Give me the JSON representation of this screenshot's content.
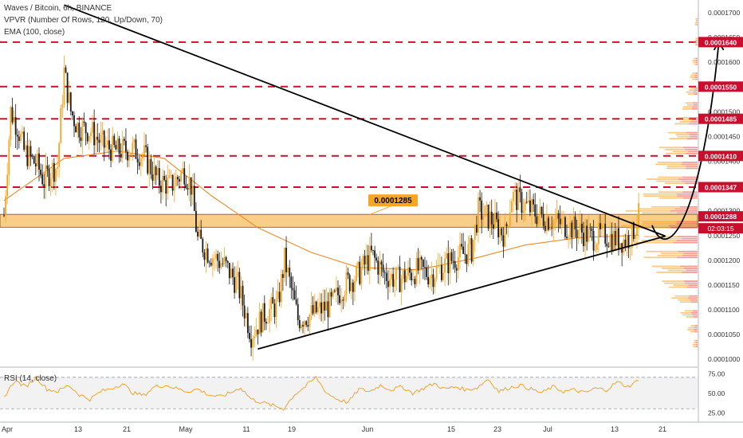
{
  "header": {
    "symbol_line": "Waves / Bitcoin, 6h, BINANCE",
    "vpvr_line": "VPVR (Number Of Rows, 120, Up/Down, 70)",
    "ema_line": "EMA (100, close)",
    "rsi_line": "RSI (14, close)"
  },
  "chart_data": {
    "type": "candlestick",
    "symbol": "Waves / Bitcoin",
    "timeframe": "6h",
    "exchange": "BINANCE",
    "price_axis": {
      "ylim": [
        9.85e-05,
        0.0001725
      ],
      "ticks": [
        "0.0001000",
        "0.0001050",
        "0.0001100",
        "0.0001150",
        "0.0001200",
        "0.0001250",
        "0.0001300",
        "0.0001350",
        "0.0001400",
        "0.0001450",
        "0.0001500",
        "0.0001550",
        "0.0001600",
        "0.0001650",
        "0.0001700"
      ]
    },
    "time_axis": {
      "ticks": [
        "Apr",
        "13",
        "21",
        "May",
        "11",
        "19",
        "Jun",
        "15",
        "23",
        "Jul",
        "13",
        "21"
      ]
    },
    "horizontal_levels": [
      {
        "price": 0.000164,
        "label": "0.0001640"
      },
      {
        "price": 0.000155,
        "label": "0.0001550"
      },
      {
        "price": 0.0001485,
        "label": "0.0001485"
      },
      {
        "price": 0.000141,
        "label": "0.0001410"
      },
      {
        "price": 0.0001347,
        "label": "0.0001347"
      }
    ],
    "support_zone": {
      "low": 0.0001266,
      "high": 0.0001292,
      "label": "0.0001285"
    },
    "last_price": {
      "price": 0.0001288,
      "label": "0.0001288",
      "countdown": "02:03:15"
    },
    "close_path": [
      {
        "date": "Mar 31",
        "close": 0.000129
      },
      {
        "date": "Apr 1",
        "close": 0.00015
      },
      {
        "date": "Apr 2",
        "close": 0.000147
      },
      {
        "date": "Apr 3",
        "close": 0.000142
      },
      {
        "date": "Apr 5",
        "close": 0.000139
      },
      {
        "date": "Apr 6",
        "close": 0.000136
      },
      {
        "date": "Apr 7",
        "close": 0.000138
      },
      {
        "date": "Apr 8",
        "close": 0.000139
      },
      {
        "date": "Apr 9",
        "close": 0.000158
      },
      {
        "date": "Apr 10",
        "close": 0.00015
      },
      {
        "date": "Apr 11",
        "close": 0.000147
      },
      {
        "date": "Apr 13",
        "close": 0.000146
      },
      {
        "date": "Apr 15",
        "close": 0.000143
      },
      {
        "date": "Apr 17",
        "close": 0.000142
      },
      {
        "date": "Apr 19",
        "close": 0.0001425
      },
      {
        "date": "Apr 21",
        "close": 0.000141
      },
      {
        "date": "Apr 23",
        "close": 0.000136
      },
      {
        "date": "Apr 25",
        "close": 0.000135
      },
      {
        "date": "Apr 27",
        "close": 0.000138
      },
      {
        "date": "Apr 28",
        "close": 0.000135
      },
      {
        "date": "Apr 29",
        "close": 0.000124
      },
      {
        "date": "May 1",
        "close": 0.000121
      },
      {
        "date": "May 3",
        "close": 0.000119
      },
      {
        "date": "May 5",
        "close": 0.000115
      },
      {
        "date": "May 7",
        "close": 0.000105
      },
      {
        "date": "May 9",
        "close": 0.000109
      },
      {
        "date": "May 11",
        "close": 0.000111
      },
      {
        "date": "May 12",
        "close": 0.00012
      },
      {
        "date": "May 14",
        "close": 0.000108
      },
      {
        "date": "May 16",
        "close": 0.000109
      },
      {
        "date": "May 19",
        "close": 0.000111
      },
      {
        "date": "May 21",
        "close": 0.000115
      },
      {
        "date": "May 23",
        "close": 0.000117
      },
      {
        "date": "May 25",
        "close": 0.000121
      },
      {
        "date": "May 27",
        "close": 0.000117
      },
      {
        "date": "May 29",
        "close": 0.000116
      },
      {
        "date": "Jun 1",
        "close": 0.000118
      },
      {
        "date": "Jun 3",
        "close": 0.000117
      },
      {
        "date": "Jun 6",
        "close": 0.00012
      },
      {
        "date": "Jun 9",
        "close": 0.000122
      },
      {
        "date": "Jun 10",
        "close": 0.00013
      },
      {
        "date": "Jun 12",
        "close": 0.000128
      },
      {
        "date": "Jun 14",
        "close": 0.000125
      },
      {
        "date": "Jun 15",
        "close": 0.000133
      },
      {
        "date": "Jun 17",
        "close": 0.000131
      },
      {
        "date": "Jun 19",
        "close": 0.000129
      },
      {
        "date": "Jun 21",
        "close": 0.000128
      },
      {
        "date": "Jun 23",
        "close": 0.000127
      },
      {
        "date": "Jun 25",
        "close": 0.000126
      },
      {
        "date": "Jun 27",
        "close": 0.0001245
      },
      {
        "date": "Jun 29",
        "close": 0.000125
      },
      {
        "date": "Jul 1",
        "close": 0.000124
      },
      {
        "date": "Jul 2",
        "close": 0.000124
      },
      {
        "date": "Jul 3",
        "close": 0.000125
      },
      {
        "date": "Jul 4",
        "close": 0.0001288
      }
    ],
    "ema_100": [
      {
        "date": "Mar 31",
        "value": 0.000132
      },
      {
        "date": "Apr 9",
        "value": 0.0001405
      },
      {
        "date": "Apr 17",
        "value": 0.000142
      },
      {
        "date": "Apr 24",
        "value": 0.0001405
      },
      {
        "date": "May 1",
        "value": 0.000133
      },
      {
        "date": "May 8",
        "value": 0.0001265
      },
      {
        "date": "May 16",
        "value": 0.0001215
      },
      {
        "date": "May 23",
        "value": 0.0001185
      },
      {
        "date": "Jun 1",
        "value": 0.000118
      },
      {
        "date": "Jun 10",
        "value": 0.0001205
      },
      {
        "date": "Jun 17",
        "value": 0.000123
      },
      {
        "date": "Jun 25",
        "value": 0.0001245
      },
      {
        "date": "Jul 4",
        "value": 0.000125
      }
    ],
    "trendlines": [
      {
        "name": "descending",
        "from": {
          "date": "Apr 9",
          "price": 0.0001715
        },
        "to": {
          "date": "Jul 8",
          "price": 0.0001248
        }
      },
      {
        "name": "ascending",
        "from": {
          "date": "May 8",
          "price": 0.000102
        },
        "to": {
          "date": "Jul 8",
          "price": 0.0001248
        }
      }
    ],
    "projection": {
      "from": {
        "date": "Jul 6",
        "price": 0.000127
      },
      "to": {
        "date": "Jul 16",
        "price": 0.000164
      }
    },
    "volume_profile": [
      {
        "price": 0.000103,
        "size": 0.06
      },
      {
        "price": 0.000106,
        "size": 0.12
      },
      {
        "price": 0.000109,
        "size": 0.2
      },
      {
        "price": 0.000112,
        "size": 0.3
      },
      {
        "price": 0.000115,
        "size": 0.42
      },
      {
        "price": 0.000118,
        "size": 0.52
      },
      {
        "price": 0.000121,
        "size": 0.62
      },
      {
        "price": 0.000124,
        "size": 0.74
      },
      {
        "price": 0.000127,
        "size": 0.9
      },
      {
        "price": 0.00013,
        "size": 0.82
      },
      {
        "price": 0.000133,
        "size": 0.66
      },
      {
        "price": 0.000136,
        "size": 0.58
      },
      {
        "price": 0.000139,
        "size": 0.5
      },
      {
        "price": 0.000142,
        "size": 0.44
      },
      {
        "price": 0.000145,
        "size": 0.34
      },
      {
        "price": 0.000148,
        "size": 0.26
      },
      {
        "price": 0.000151,
        "size": 0.18
      },
      {
        "price": 0.000154,
        "size": 0.13
      },
      {
        "price": 0.000157,
        "size": 0.09
      },
      {
        "price": 0.00016,
        "size": 0.06
      },
      {
        "price": 0.000164,
        "size": 0.04
      },
      {
        "price": 0.000168,
        "size": 0.03
      }
    ],
    "rsi": {
      "ticks": [
        "75.00",
        "50.00",
        "25.00"
      ],
      "upper": 70,
      "lower": 30,
      "ylim": [
        15,
        82
      ],
      "values": [
        45,
        66,
        58,
        70,
        55,
        52,
        60,
        48,
        42,
        52,
        56,
        62,
        50,
        47,
        58,
        60,
        56,
        52,
        55,
        48,
        45,
        50,
        57,
        42,
        38,
        34,
        30,
        48,
        58,
        70,
        50,
        42,
        38,
        55,
        52,
        60,
        54,
        58,
        50,
        56,
        62,
        55,
        58,
        54,
        57,
        68,
        52,
        57,
        60,
        55,
        50,
        58,
        52,
        54,
        50,
        56,
        54,
        64,
        58,
        66
      ]
    }
  }
}
